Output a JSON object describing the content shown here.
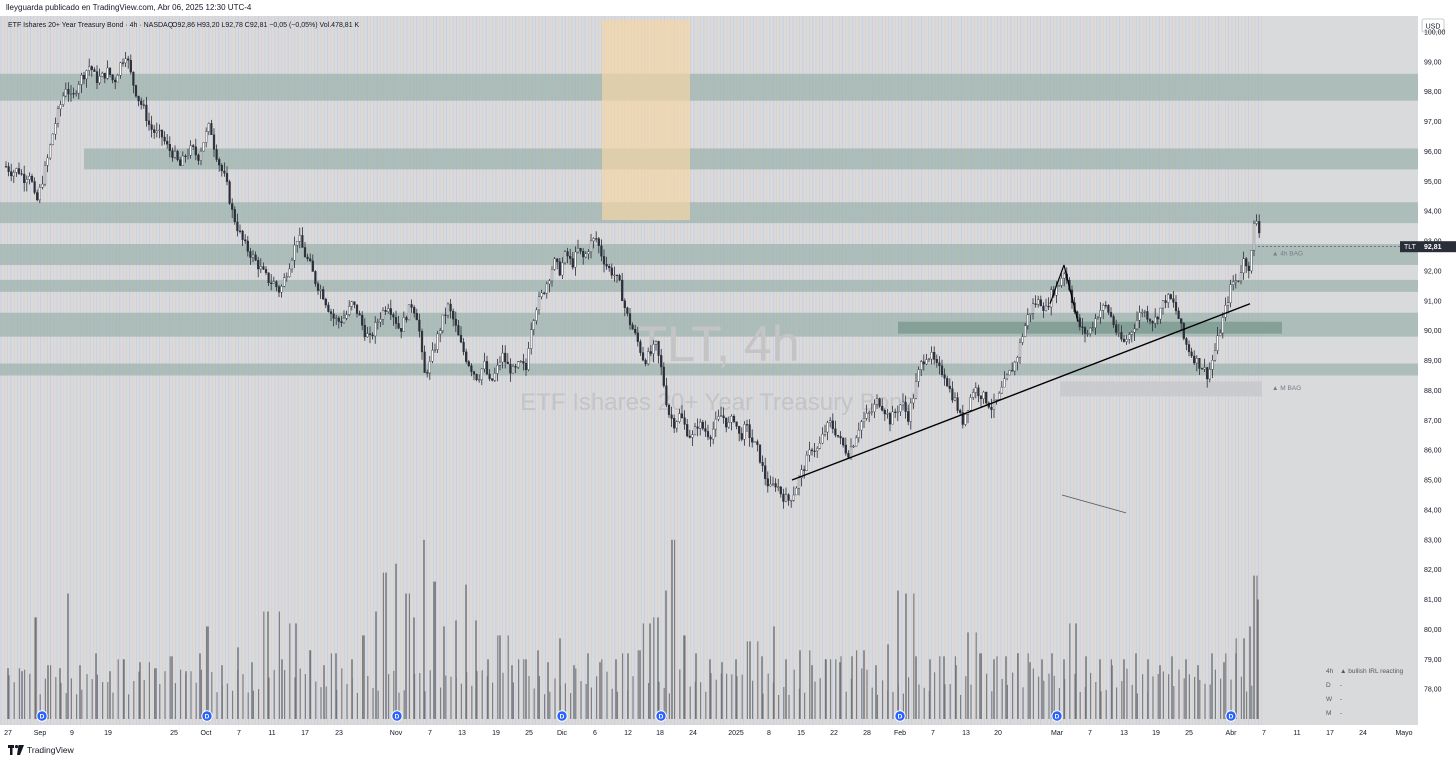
{
  "header": {
    "published": "lleyguarda publicado en TradingView.com, Abr 06, 2025 12:30 UTC-4"
  },
  "footer": {
    "brand": "TradingView"
  },
  "chart_data": {
    "type": "candlestick",
    "symbol_info": "ETF Ishares 20+ Year Treasury Bond · 4h · NASDAQ",
    "ohlc_label": "O92,86 H93,20 L92,78 C92,81 −0,05 (−0,05%) Vol.478,81 K",
    "watermark_symbol": "TLT, 4h",
    "watermark_name": "ETF Ishares 20+ Year Treasury Bond",
    "currency": "USD",
    "last_price": {
      "ticker": "TLT",
      "value": "92,81",
      "raw": 92.81
    },
    "y_range": [
      77.0,
      100.4
    ],
    "y_ticks": [
      {
        "v": 100,
        "label": "100,00"
      },
      {
        "v": 99,
        "label": "99,00"
      },
      {
        "v": 98,
        "label": "98,00"
      },
      {
        "v": 97,
        "label": "97,00"
      },
      {
        "v": 96,
        "label": "96,00"
      },
      {
        "v": 95,
        "label": "95,00"
      },
      {
        "v": 94,
        "label": "94,00"
      },
      {
        "v": 93,
        "label": "93,00"
      },
      {
        "v": 92,
        "label": "92,00"
      },
      {
        "v": 91,
        "label": "91,00"
      },
      {
        "v": 90,
        "label": "90,00"
      },
      {
        "v": 89,
        "label": "89,00"
      },
      {
        "v": 88,
        "label": "88,00"
      },
      {
        "v": 87,
        "label": "87,00"
      },
      {
        "v": 86,
        "label": "86,00"
      },
      {
        "v": 85,
        "label": "85,00"
      },
      {
        "v": 84,
        "label": "84,00"
      },
      {
        "v": 83,
        "label": "83,00"
      },
      {
        "v": 82,
        "label": "82,00"
      },
      {
        "v": 81,
        "label": "81,00"
      },
      {
        "v": 80,
        "label": "80,00"
      },
      {
        "v": 79,
        "label": "79,00"
      },
      {
        "v": 78,
        "label": "78,00"
      }
    ],
    "x_labels": [
      "27",
      "Sep",
      "9",
      "19",
      "25",
      "Oct",
      "7",
      "11",
      "17",
      "23",
      "Nov",
      "7",
      "13",
      "19",
      "25",
      "Dic",
      "6",
      "12",
      "18",
      "24",
      "2025",
      "8",
      "15",
      "22",
      "28",
      "Feb",
      "7",
      "13",
      "20",
      "Mar",
      "7",
      "13",
      "19",
      "25",
      "Abr",
      "7",
      "11",
      "17",
      "24",
      "Mayo"
    ],
    "x_label_positions": [
      8,
      40,
      72,
      108,
      174,
      206,
      239,
      272,
      305,
      339,
      396,
      430,
      462,
      496,
      529,
      562,
      595,
      628,
      660,
      693,
      736,
      769,
      801,
      834,
      867,
      900,
      933,
      966,
      998,
      1057,
      1090,
      1124,
      1156,
      1189,
      1231,
      1264,
      1297,
      1330,
      1363,
      1404
    ],
    "close_path": [
      [
        0,
        95.7
      ],
      [
        6,
        95.5
      ],
      [
        12,
        95.3
      ],
      [
        18,
        95.4
      ],
      [
        24,
        95.1
      ],
      [
        30,
        95.3
      ],
      [
        36,
        94.2
      ],
      [
        42,
        95.0
      ],
      [
        48,
        95.8
      ],
      [
        54,
        96.8
      ],
      [
        60,
        97.5
      ],
      [
        66,
        98.2
      ],
      [
        72,
        97.7
      ],
      [
        78,
        98.3
      ],
      [
        84,
        98.6
      ],
      [
        90,
        98.9
      ],
      [
        96,
        98.4
      ],
      [
        102,
        98.5
      ],
      [
        108,
        98.7
      ],
      [
        114,
        98.3
      ],
      [
        120,
        98.9
      ],
      [
        126,
        99.3
      ],
      [
        132,
        98.4
      ],
      [
        138,
        97.8
      ],
      [
        144,
        97.4
      ],
      [
        150,
        96.8
      ],
      [
        156,
        96.6
      ],
      [
        162,
        96.5
      ],
      [
        168,
        96.1
      ],
      [
        174,
        95.9
      ],
      [
        180,
        95.5
      ],
      [
        186,
        95.9
      ],
      [
        192,
        96.1
      ],
      [
        198,
        95.8
      ],
      [
        204,
        96.4
      ],
      [
        210,
        96.9
      ],
      [
        214,
        96.2
      ],
      [
        220,
        95.5
      ],
      [
        226,
        95.0
      ],
      [
        232,
        94.0
      ],
      [
        238,
        93.4
      ],
      [
        244,
        92.9
      ],
      [
        250,
        92.6
      ],
      [
        256,
        92.3
      ],
      [
        262,
        92.0
      ],
      [
        268,
        91.7
      ],
      [
        274,
        91.6
      ],
      [
        280,
        91.3
      ],
      [
        286,
        91.9
      ],
      [
        292,
        92.5
      ],
      [
        298,
        93.2
      ],
      [
        304,
        92.6
      ],
      [
        310,
        92.2
      ],
      [
        316,
        91.6
      ],
      [
        322,
        91.3
      ],
      [
        328,
        90.8
      ],
      [
        334,
        90.4
      ],
      [
        340,
        90.3
      ],
      [
        346,
        90.5
      ],
      [
        352,
        90.9
      ],
      [
        358,
        90.6
      ],
      [
        364,
        90.0
      ],
      [
        370,
        89.7
      ],
      [
        376,
        90.2
      ],
      [
        382,
        90.6
      ],
      [
        388,
        90.9
      ],
      [
        394,
        90.5
      ],
      [
        400,
        90.0
      ],
      [
        406,
        90.5
      ],
      [
        412,
        90.9
      ],
      [
        418,
        90.4
      ],
      [
        424,
        88.5
      ],
      [
        430,
        88.9
      ],
      [
        436,
        89.6
      ],
      [
        442,
        90.3
      ],
      [
        448,
        90.8
      ],
      [
        454,
        90.3
      ],
      [
        460,
        89.6
      ],
      [
        466,
        89.1
      ],
      [
        472,
        88.7
      ],
      [
        478,
        88.4
      ],
      [
        484,
        88.9
      ],
      [
        490,
        88.2
      ],
      [
        496,
        88.6
      ],
      [
        502,
        89.2
      ],
      [
        508,
        88.8
      ],
      [
        514,
        88.6
      ],
      [
        520,
        88.9
      ],
      [
        526,
        88.7
      ],
      [
        530,
        90.0
      ],
      [
        536,
        90.8
      ],
      [
        542,
        91.2
      ],
      [
        548,
        91.7
      ],
      [
        554,
        92.3
      ],
      [
        560,
        92.0
      ],
      [
        566,
        92.6
      ],
      [
        572,
        92.2
      ],
      [
        578,
        92.7
      ],
      [
        584,
        92.4
      ],
      [
        590,
        92.9
      ],
      [
        596,
        93.1
      ],
      [
        602,
        92.5
      ],
      [
        608,
        92.1
      ],
      [
        614,
        91.9
      ],
      [
        620,
        91.5
      ],
      [
        626,
        90.6
      ],
      [
        632,
        90.1
      ],
      [
        638,
        89.6
      ],
      [
        644,
        89.0
      ],
      [
        650,
        89.2
      ],
      [
        656,
        89.5
      ],
      [
        662,
        88.6
      ],
      [
        668,
        87.3
      ],
      [
        674,
        86.9
      ],
      [
        680,
        87.2
      ],
      [
        686,
        86.7
      ],
      [
        692,
        86.4
      ],
      [
        698,
        86.9
      ],
      [
        704,
        86.7
      ],
      [
        710,
        86.5
      ],
      [
        716,
        86.9
      ],
      [
        722,
        87.2
      ],
      [
        728,
        86.8
      ],
      [
        734,
        87.1
      ],
      [
        740,
        86.4
      ],
      [
        746,
        86.8
      ],
      [
        752,
        86.3
      ],
      [
        758,
        86.0
      ],
      [
        764,
        85.2
      ],
      [
        770,
        84.7
      ],
      [
        776,
        84.9
      ],
      [
        782,
        84.5
      ],
      [
        788,
        84.3
      ],
      [
        794,
        84.6
      ],
      [
        800,
        85.1
      ],
      [
        806,
        85.6
      ],
      [
        812,
        86.1
      ],
      [
        818,
        86.0
      ],
      [
        824,
        86.6
      ],
      [
        830,
        86.9
      ],
      [
        836,
        86.6
      ],
      [
        842,
        86.2
      ],
      [
        848,
        85.9
      ],
      [
        854,
        86.3
      ],
      [
        860,
        86.9
      ],
      [
        866,
        87.1
      ],
      [
        872,
        87.3
      ],
      [
        878,
        87.7
      ],
      [
        884,
        87.4
      ],
      [
        890,
        87.0
      ],
      [
        896,
        87.3
      ],
      [
        902,
        87.6
      ],
      [
        908,
        87.1
      ],
      [
        914,
        87.9
      ],
      [
        920,
        88.8
      ],
      [
        926,
        89.2
      ],
      [
        932,
        89.1
      ],
      [
        938,
        88.7
      ],
      [
        944,
        88.6
      ],
      [
        950,
        88.0
      ],
      [
        956,
        87.6
      ],
      [
        962,
        86.9
      ],
      [
        968,
        87.5
      ],
      [
        974,
        88.1
      ],
      [
        980,
        87.9
      ],
      [
        986,
        87.7
      ],
      [
        992,
        87.4
      ],
      [
        998,
        87.7
      ],
      [
        1004,
        88.2
      ],
      [
        1010,
        88.6
      ],
      [
        1016,
        89.0
      ],
      [
        1022,
        89.8
      ],
      [
        1028,
        90.5
      ],
      [
        1034,
        90.9
      ],
      [
        1040,
        91.0
      ],
      [
        1046,
        90.7
      ],
      [
        1052,
        91.3
      ],
      [
        1058,
        91.5
      ],
      [
        1064,
        92.0
      ],
      [
        1070,
        91.4
      ],
      [
        1076,
        90.4
      ],
      [
        1082,
        90.0
      ],
      [
        1088,
        89.9
      ],
      [
        1094,
        90.3
      ],
      [
        1100,
        90.7
      ],
      [
        1106,
        90.8
      ],
      [
        1112,
        90.4
      ],
      [
        1118,
        89.8
      ],
      [
        1124,
        89.6
      ],
      [
        1130,
        89.9
      ],
      [
        1136,
        90.3
      ],
      [
        1142,
        90.7
      ],
      [
        1148,
        90.5
      ],
      [
        1154,
        90.3
      ],
      [
        1160,
        90.7
      ],
      [
        1166,
        91.1
      ],
      [
        1172,
        91.0
      ],
      [
        1178,
        90.5
      ],
      [
        1184,
        89.7
      ],
      [
        1190,
        89.3
      ],
      [
        1196,
        89.0
      ],
      [
        1202,
        88.8
      ],
      [
        1208,
        88.5
      ],
      [
        1214,
        89.2
      ],
      [
        1220,
        90.0
      ],
      [
        1226,
        90.8
      ],
      [
        1232,
        91.6
      ],
      [
        1238,
        91.7
      ],
      [
        1244,
        92.4
      ],
      [
        1250,
        92.1
      ],
      [
        1254,
        93.5
      ],
      [
        1258,
        93.8
      ],
      [
        1261,
        92.81
      ]
    ],
    "volume": [
      [
        8,
        78.7
      ],
      [
        22,
        78.6
      ],
      [
        36,
        80.4
      ],
      [
        48,
        78.8
      ],
      [
        60,
        78.7
      ],
      [
        68,
        81.2
      ],
      [
        80,
        78.8
      ],
      [
        96,
        79.2
      ],
      [
        110,
        78.6
      ],
      [
        124,
        79.0
      ],
      [
        140,
        78.9
      ],
      [
        156,
        78.7
      ],
      [
        172,
        79.1
      ],
      [
        186,
        78.6
      ],
      [
        200,
        79.2
      ],
      [
        208,
        80.1
      ],
      [
        222,
        78.8
      ],
      [
        238,
        79.4
      ],
      [
        252,
        78.9
      ],
      [
        268,
        80.6
      ],
      [
        282,
        79.0
      ],
      [
        296,
        80.2
      ],
      [
        310,
        79.3
      ],
      [
        324,
        78.8
      ],
      [
        336,
        79.2
      ],
      [
        352,
        79.0
      ],
      [
        364,
        79.8
      ],
      [
        376,
        80.6
      ],
      [
        386,
        81.9
      ],
      [
        396,
        82.2
      ],
      [
        406,
        81.2
      ],
      [
        414,
        80.4
      ],
      [
        424,
        83.0
      ],
      [
        434,
        81.6
      ],
      [
        444,
        80.1
      ],
      [
        456,
        80.3
      ],
      [
        466,
        81.5
      ],
      [
        476,
        80.3
      ],
      [
        488,
        79.0
      ],
      [
        500,
        79.8
      ],
      [
        512,
        78.8
      ],
      [
        526,
        79.0
      ],
      [
        538,
        79.3
      ],
      [
        548,
        78.9
      ],
      [
        560,
        79.7
      ],
      [
        574,
        78.8
      ],
      [
        588,
        79.2
      ],
      [
        600,
        78.9
      ],
      [
        616,
        79.0
      ],
      [
        628,
        79.2
      ],
      [
        640,
        79.3
      ],
      [
        650,
        80.2
      ],
      [
        658,
        80.4
      ],
      [
        666,
        81.3
      ],
      [
        672,
        83.0
      ],
      [
        684,
        79.8
      ],
      [
        696,
        79.2
      ],
      [
        710,
        79.0
      ],
      [
        722,
        78.9
      ],
      [
        736,
        79.0
      ],
      [
        750,
        79.6
      ],
      [
        762,
        79.1
      ],
      [
        774,
        80.1
      ],
      [
        786,
        79.0
      ],
      [
        800,
        79.3
      ],
      [
        812,
        78.8
      ],
      [
        826,
        79.0
      ],
      [
        840,
        78.9
      ],
      [
        852,
        79.1
      ],
      [
        864,
        79.3
      ],
      [
        876,
        78.8
      ],
      [
        888,
        79.5
      ],
      [
        898,
        81.3
      ],
      [
        906,
        81.2
      ],
      [
        916,
        79.1
      ],
      [
        930,
        79.0
      ],
      [
        944,
        79.1
      ],
      [
        956,
        78.8
      ],
      [
        968,
        79.9
      ],
      [
        980,
        79.2
      ],
      [
        994,
        79.0
      ],
      [
        1006,
        79.1
      ],
      [
        1018,
        79.2
      ],
      [
        1030,
        78.9
      ],
      [
        1042,
        79.0
      ],
      [
        1052,
        79.2
      ],
      [
        1064,
        79.0
      ],
      [
        1076,
        80.2
      ],
      [
        1086,
        79.1
      ],
      [
        1100,
        79.0
      ],
      [
        1112,
        78.8
      ],
      [
        1124,
        79.0
      ],
      [
        1136,
        79.2
      ],
      [
        1148,
        79.0
      ],
      [
        1160,
        78.8
      ],
      [
        1172,
        79.1
      ],
      [
        1186,
        79.0
      ],
      [
        1198,
        78.8
      ],
      [
        1212,
        79.2
      ],
      [
        1224,
        78.9
      ],
      [
        1236,
        79.2
      ],
      [
        1244,
        79.7
      ],
      [
        1250,
        80.1
      ],
      [
        1254,
        81.8
      ],
      [
        1258,
        81.0
      ]
    ],
    "zones": [
      {
        "x0": 0,
        "x1": 1418,
        "y0": 98.6,
        "y1": 97.7,
        "color": "#9eb3ad",
        "opacity": 0.75
      },
      {
        "x0": 84,
        "x1": 1418,
        "y0": 96.1,
        "y1": 95.4,
        "color": "#9eb3ad",
        "opacity": 0.75
      },
      {
        "x0": 0,
        "x1": 1418,
        "y0": 94.3,
        "y1": 93.6,
        "color": "#9eb3ad",
        "opacity": 0.75
      },
      {
        "x0": 0,
        "x1": 1418,
        "y0": 92.9,
        "y1": 92.2,
        "color": "#9eb3ad",
        "opacity": 0.75
      },
      {
        "x0": 0,
        "x1": 1418,
        "y0": 91.7,
        "y1": 91.3,
        "color": "#9eb3ad",
        "opacity": 0.75
      },
      {
        "x0": 0,
        "x1": 1418,
        "y0": 90.6,
        "y1": 89.8,
        "color": "#9eb3ad",
        "opacity": 0.75
      },
      {
        "x0": 898,
        "x1": 1282,
        "y0": 90.3,
        "y1": 89.9,
        "color": "#7b9a8e",
        "opacity": 0.8
      },
      {
        "x0": 0,
        "x1": 1418,
        "y0": 88.9,
        "y1": 88.5,
        "color": "#9eb3ad",
        "opacity": 0.75
      },
      {
        "x0": 1060,
        "x1": 1262,
        "y0": 88.3,
        "y1": 87.8,
        "color": "#c7c9cc",
        "opacity": 0.9
      },
      {
        "x0": 602,
        "x1": 690,
        "y0": 100.4,
        "y1": 93.7,
        "color": "#f4d6a6",
        "opacity": 0.7
      }
    ],
    "trendlines": [
      {
        "x0": 792,
        "y0": 85.0,
        "x1": 1250,
        "y1": 90.9,
        "color": "#000000",
        "width": 1.4
      },
      {
        "x0": 1050,
        "y0": 90.9,
        "x1": 1064,
        "y1": 92.2,
        "color": "#000000",
        "width": 1.2
      },
      {
        "x0": 1064,
        "y0": 92.2,
        "x1": 1078,
        "y1": 90.3,
        "color": "#000000",
        "width": 1.2
      },
      {
        "x0": 1062,
        "y0": 84.5,
        "x1": 1126,
        "y1": 83.9,
        "color": "#555555",
        "width": 0.8
      }
    ],
    "annotations": [
      {
        "text": "▲ 4h BAG",
        "x": 1272,
        "y": 92.6
      },
      {
        "text": "▲ M BAG",
        "x": 1272,
        "y": 88.1
      }
    ],
    "dividends": [
      42,
      207,
      397,
      562,
      661,
      900,
      1057,
      1231
    ],
    "dividend_label": "D",
    "legend": [
      {
        "tf": "4h",
        "text": "▲ bullish IRL reacting"
      },
      {
        "tf": "D",
        "text": "-"
      },
      {
        "tf": "W",
        "text": "-"
      },
      {
        "tf": "M",
        "text": "-"
      }
    ],
    "colors": {
      "background": "#d9dadc",
      "candle": "#2a2e39",
      "volume": "#6f7076",
      "zone": "#9eb3ad",
      "accent_line": "#b6b9ee",
      "last_price_bg": "#2a2e39"
    },
    "grid": false
  }
}
